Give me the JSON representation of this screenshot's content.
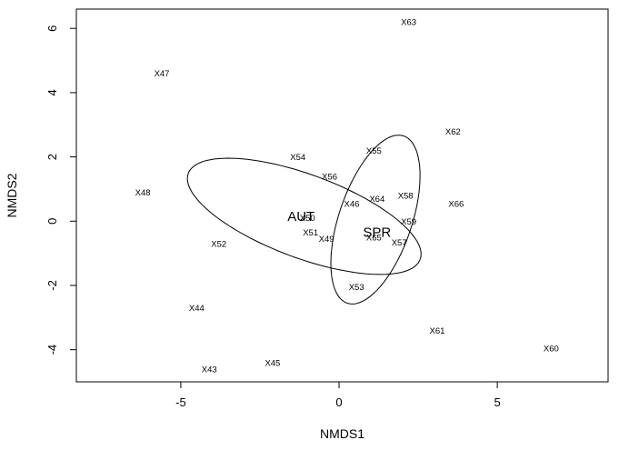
{
  "chart_data": {
    "type": "scatter",
    "title": "",
    "xlabel": "NMDS1",
    "ylabel": "NMDS2",
    "xlim": [
      -8.3,
      8.5
    ],
    "ylim": [
      -5.0,
      6.6
    ],
    "xticks": [
      -5,
      0,
      5
    ],
    "yticks": [
      -4,
      -2,
      0,
      2,
      4,
      6
    ],
    "grid": false,
    "points": [
      {
        "label": "X63",
        "x": 2.2,
        "y": 6.2
      },
      {
        "label": "X47",
        "x": -5.6,
        "y": 4.6
      },
      {
        "label": "X62",
        "x": 3.6,
        "y": 2.8
      },
      {
        "label": "X55",
        "x": 1.1,
        "y": 2.2
      },
      {
        "label": "X54",
        "x": -1.3,
        "y": 2.0
      },
      {
        "label": "X56",
        "x": -0.3,
        "y": 1.4
      },
      {
        "label": "X48",
        "x": -6.2,
        "y": 0.9
      },
      {
        "label": "X58",
        "x": 2.1,
        "y": 0.8
      },
      {
        "label": "X64",
        "x": 1.2,
        "y": 0.7
      },
      {
        "label": "X46",
        "x": 0.4,
        "y": 0.55
      },
      {
        "label": "X66",
        "x": 3.7,
        "y": 0.55
      },
      {
        "label": "X50",
        "x": -1.0,
        "y": 0.1
      },
      {
        "label": "X59",
        "x": 2.2,
        "y": 0.0
      },
      {
        "label": "X51",
        "x": -0.9,
        "y": -0.35
      },
      {
        "label": "X65",
        "x": 1.1,
        "y": -0.5
      },
      {
        "label": "X49",
        "x": -0.4,
        "y": -0.55
      },
      {
        "label": "X57",
        "x": 1.9,
        "y": -0.65
      },
      {
        "label": "X52",
        "x": -3.8,
        "y": -0.7
      },
      {
        "label": "X53",
        "x": 0.55,
        "y": -2.05
      },
      {
        "label": "X44",
        "x": -4.5,
        "y": -2.7
      },
      {
        "label": "X61",
        "x": 3.1,
        "y": -3.4
      },
      {
        "label": "X60",
        "x": 6.7,
        "y": -3.95
      },
      {
        "label": "X45",
        "x": -2.1,
        "y": -4.4
      },
      {
        "label": "X43",
        "x": -4.1,
        "y": -4.6
      }
    ],
    "ellipses": [
      {
        "label": "AUT",
        "cx": -1.1,
        "cy": 0.15,
        "rx": 3.9,
        "ry": 1.3,
        "angle_deg": -20,
        "label_x": -1.2,
        "label_y": 0.15
      },
      {
        "label": "SPR",
        "cx": 1.15,
        "cy": 0.05,
        "rx": 2.75,
        "ry": 1.15,
        "angle_deg": 71,
        "label_x": 1.2,
        "label_y": -0.35
      }
    ]
  }
}
